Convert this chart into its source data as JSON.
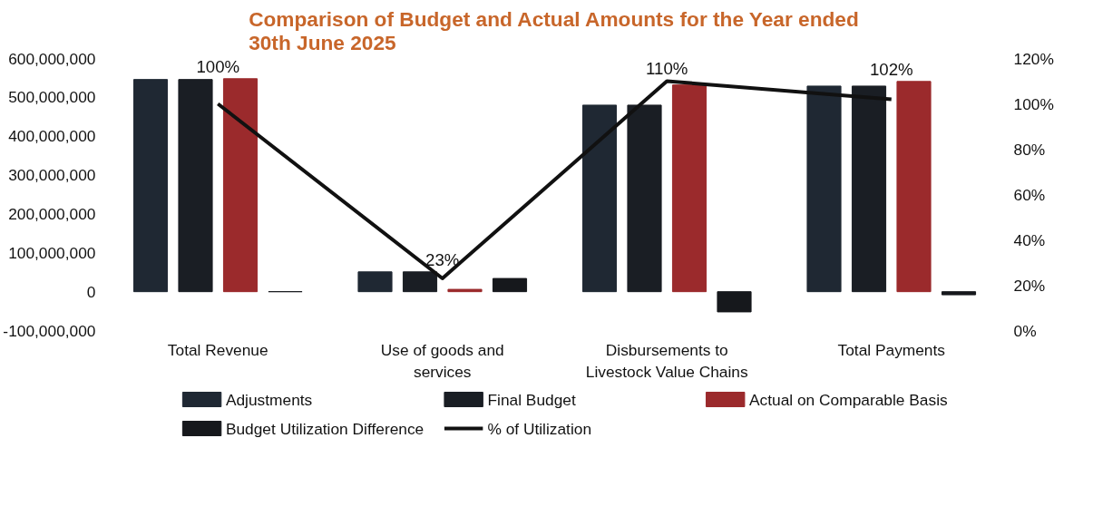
{
  "chart_data": {
    "type": "bar",
    "title": "Comparison of Budget and Actual Amounts for the Year ended\n30th June 2025",
    "categories": [
      "Total Revenue",
      "Use of goods and services",
      "Disbursements to Livestock Value Chains",
      "Total Payments"
    ],
    "series": [
      {
        "name": "Adjustments",
        "color": "#1f2833",
        "values": [
          546000000,
          51000000,
          480000000,
          529000000
        ]
      },
      {
        "name": "Final Budget",
        "color": "#1a1e24",
        "values": [
          546000000,
          51000000,
          480000000,
          529000000
        ]
      },
      {
        "name": "Actual on Comparable Basis",
        "color": "#9b2a2c",
        "values": [
          548000000,
          6000000,
          532000000,
          541000000
        ]
      },
      {
        "name": "Budget Utilization Difference",
        "color": "#16181c",
        "values": [
          0,
          34000000,
          -52000000,
          -8000000
        ]
      },
      {
        "name": "% of Utilization",
        "type": "line",
        "axis": "y2",
        "color": "#111111",
        "values": [
          100,
          23,
          110,
          102
        ],
        "value_labels": [
          "100%",
          "23%",
          "110%",
          "102%"
        ]
      }
    ],
    "ylim": [
      -100000000,
      600000000
    ],
    "yticks": [
      {
        "value": -100000000,
        "label": "-100,000,000"
      },
      {
        "value": 0,
        "label": "0"
      },
      {
        "value": 100000000,
        "label": "100,000,000"
      },
      {
        "value": 200000000,
        "label": "200,000,000"
      },
      {
        "value": 300000000,
        "label": "300,000,000"
      },
      {
        "value": 400000000,
        "label": "400,000,000"
      },
      {
        "value": 500000000,
        "label": "500,000,000"
      },
      {
        "value": 600000000,
        "label": "600,000,000"
      }
    ],
    "y2lim": [
      0,
      120
    ],
    "y2ticks": [
      {
        "value": 0,
        "label": "0%"
      },
      {
        "value": 20,
        "label": "20%"
      },
      {
        "value": 40,
        "label": "40%"
      },
      {
        "value": 60,
        "label": "60%"
      },
      {
        "value": 80,
        "label": "80%"
      },
      {
        "value": 100,
        "label": "100%"
      },
      {
        "value": 120,
        "label": "120%"
      }
    ],
    "legend": "bottom",
    "grid": false,
    "line_style": "solid",
    "marker": "none"
  }
}
